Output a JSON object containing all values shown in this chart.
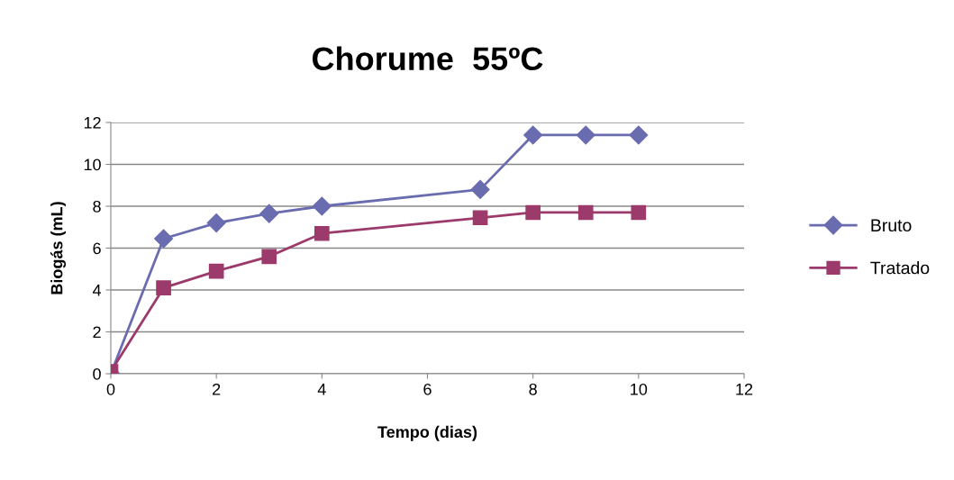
{
  "chart_data": {
    "type": "line",
    "title": "Chorume  55ºC",
    "xlabel": "Tempo (dias)",
    "ylabel": "Biogás (mL)",
    "x": [
      0,
      1,
      2,
      3,
      4,
      7,
      8,
      9,
      10
    ],
    "series": [
      {
        "name": "Bruto",
        "color": "#6a6cb0",
        "marker": "diamond",
        "values": [
          0,
          6.45,
          7.2,
          7.65,
          8.0,
          8.8,
          11.4,
          11.4,
          11.4
        ]
      },
      {
        "name": "Tratado",
        "color": "#9b3a6b",
        "marker": "square",
        "values": [
          0.1,
          4.1,
          4.9,
          5.6,
          6.7,
          7.45,
          7.7,
          7.7,
          7.7
        ]
      }
    ],
    "xlim": [
      0,
      12
    ],
    "xticks": [
      0,
      2,
      4,
      6,
      8,
      10,
      12
    ],
    "ylim": [
      0,
      12
    ],
    "yticks": [
      0,
      2,
      4,
      6,
      8,
      10,
      12
    ],
    "grid": "y",
    "legend": "right"
  }
}
